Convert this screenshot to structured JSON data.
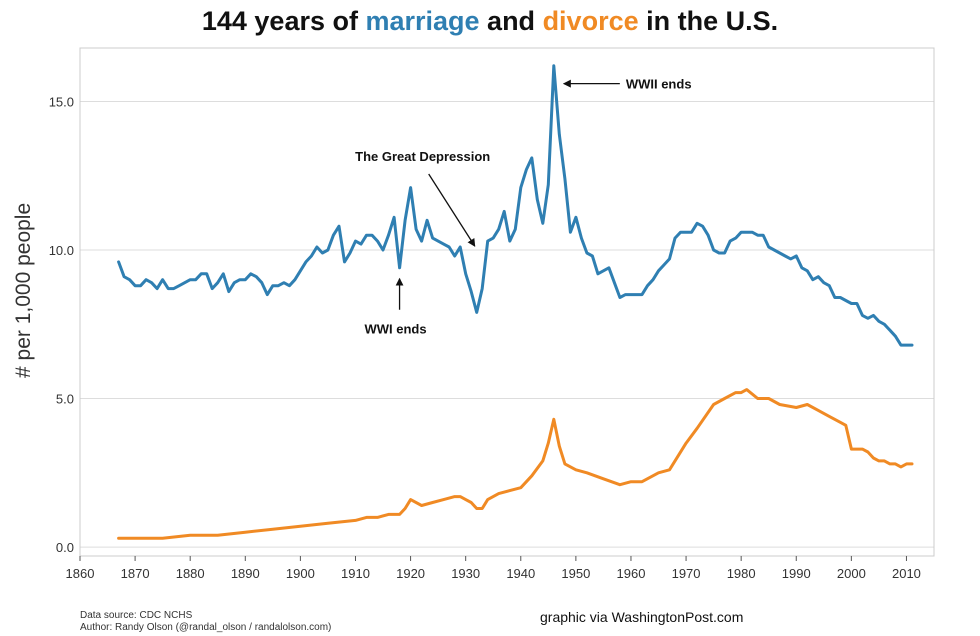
{
  "title": {
    "part1": "144 years of ",
    "marriage_word": "marriage",
    "part2": " and ",
    "divorce_word": "divorce",
    "part3": " in the U.S."
  },
  "colors": {
    "marriage": "#2f7fb2",
    "divorce": "#f08a24",
    "grid": "#dddddd"
  },
  "footer": {
    "source": "Data source: CDC NCHS",
    "author": "Author: Randy Olson (@randal_olson / randalolson.com)",
    "credit": "graphic via WashingtonPost.com"
  },
  "chart_data": {
    "type": "line",
    "xlabel": "",
    "ylabel": "# per 1,000 people",
    "xlim": [
      1860,
      2015
    ],
    "ylim": [
      -0.3,
      16.8
    ],
    "xticks": [
      "1860",
      "1870",
      "1880",
      "1890",
      "1900",
      "1910",
      "1920",
      "1930",
      "1940",
      "1950",
      "1960",
      "1970",
      "1980",
      "1990",
      "2000",
      "2010"
    ],
    "yticks": [
      "0.0",
      "5.0",
      "10.0",
      "15.0"
    ],
    "grid": true,
    "series": [
      {
        "name": "marriage",
        "x": [
          1867,
          1868,
          1869,
          1870,
          1871,
          1872,
          1873,
          1874,
          1875,
          1876,
          1877,
          1878,
          1879,
          1880,
          1881,
          1882,
          1883,
          1884,
          1885,
          1886,
          1887,
          1888,
          1889,
          1890,
          1891,
          1892,
          1893,
          1894,
          1895,
          1896,
          1897,
          1898,
          1899,
          1900,
          1901,
          1902,
          1903,
          1904,
          1905,
          1906,
          1907,
          1908,
          1909,
          1910,
          1911,
          1912,
          1913,
          1914,
          1915,
          1916,
          1917,
          1918,
          1919,
          1920,
          1921,
          1922,
          1923,
          1924,
          1925,
          1926,
          1927,
          1928,
          1929,
          1930,
          1931,
          1932,
          1933,
          1934,
          1935,
          1936,
          1937,
          1938,
          1939,
          1940,
          1941,
          1942,
          1943,
          1944,
          1945,
          1946,
          1947,
          1948,
          1949,
          1950,
          1951,
          1952,
          1953,
          1954,
          1955,
          1956,
          1957,
          1958,
          1959,
          1960,
          1961,
          1962,
          1963,
          1964,
          1965,
          1966,
          1967,
          1968,
          1969,
          1970,
          1971,
          1972,
          1973,
          1974,
          1975,
          1976,
          1977,
          1978,
          1979,
          1980,
          1981,
          1982,
          1983,
          1984,
          1985,
          1986,
          1987,
          1988,
          1989,
          1990,
          1991,
          1992,
          1993,
          1994,
          1995,
          1996,
          1997,
          1998,
          1999,
          2000,
          2001,
          2002,
          2003,
          2004,
          2005,
          2006,
          2007,
          2008,
          2009,
          2010,
          2011
        ],
        "values": [
          9.6,
          9.1,
          9.0,
          8.8,
          8.8,
          9.0,
          8.9,
          8.7,
          9.0,
          8.7,
          8.7,
          8.8,
          8.9,
          9.0,
          9.0,
          9.2,
          9.2,
          8.7,
          8.9,
          9.2,
          8.6,
          8.9,
          9.0,
          9.0,
          9.2,
          9.1,
          8.9,
          8.5,
          8.8,
          8.8,
          8.9,
          8.8,
          9.0,
          9.3,
          9.6,
          9.8,
          10.1,
          9.9,
          10.0,
          10.5,
          10.8,
          9.6,
          9.9,
          10.3,
          10.2,
          10.5,
          10.5,
          10.3,
          10.0,
          10.5,
          11.1,
          9.4,
          11.0,
          12.1,
          10.7,
          10.3,
          11.0,
          10.4,
          10.3,
          10.2,
          10.1,
          9.8,
          10.1,
          9.2,
          8.6,
          7.9,
          8.7,
          10.3,
          10.4,
          10.7,
          11.3,
          10.3,
          10.7,
          12.1,
          12.7,
          13.1,
          11.7,
          10.9,
          12.2,
          16.2,
          13.9,
          12.4,
          10.6,
          11.1,
          10.4,
          9.9,
          9.8,
          9.2,
          9.3,
          9.4,
          8.9,
          8.4,
          8.5,
          8.5,
          8.5,
          8.5,
          8.8,
          9.0,
          9.3,
          9.5,
          9.7,
          10.4,
          10.6,
          10.6,
          10.6,
          10.9,
          10.8,
          10.5,
          10.0,
          9.9,
          9.9,
          10.3,
          10.4,
          10.6,
          10.6,
          10.6,
          10.5,
          10.5,
          10.1,
          10.0,
          9.9,
          9.8,
          9.7,
          9.8,
          9.4,
          9.3,
          9.0,
          9.1,
          8.9,
          8.8,
          8.4,
          8.4,
          8.3,
          8.2,
          8.2,
          7.8,
          7.7,
          7.8,
          7.6,
          7.5,
          7.3,
          7.1,
          6.8,
          6.8,
          6.8
        ],
        "color": "#2f7fb2"
      },
      {
        "name": "divorce",
        "x": [
          1867,
          1870,
          1875,
          1880,
          1885,
          1890,
          1895,
          1900,
          1905,
          1910,
          1912,
          1914,
          1916,
          1918,
          1919,
          1920,
          1922,
          1924,
          1926,
          1928,
          1929,
          1930,
          1931,
          1932,
          1933,
          1934,
          1936,
          1938,
          1940,
          1942,
          1944,
          1945,
          1946,
          1947,
          1948,
          1950,
          1952,
          1955,
          1958,
          1960,
          1962,
          1965,
          1967,
          1970,
          1972,
          1975,
          1977,
          1979,
          1980,
          1981,
          1983,
          1985,
          1987,
          1990,
          1992,
          1994,
          1996,
          1998,
          1999,
          2000,
          2001,
          2002,
          2003,
          2004,
          2005,
          2006,
          2007,
          2008,
          2009,
          2010,
          2011
        ],
        "values": [
          0.3,
          0.3,
          0.3,
          0.4,
          0.4,
          0.5,
          0.6,
          0.7,
          0.8,
          0.9,
          1.0,
          1.0,
          1.1,
          1.1,
          1.3,
          1.6,
          1.4,
          1.5,
          1.6,
          1.7,
          1.7,
          1.6,
          1.5,
          1.3,
          1.3,
          1.6,
          1.8,
          1.9,
          2.0,
          2.4,
          2.9,
          3.5,
          4.3,
          3.4,
          2.8,
          2.6,
          2.5,
          2.3,
          2.1,
          2.2,
          2.2,
          2.5,
          2.6,
          3.5,
          4.0,
          4.8,
          5.0,
          5.2,
          5.2,
          5.3,
          5.0,
          5.0,
          4.8,
          4.7,
          4.8,
          4.6,
          4.4,
          4.2,
          4.1,
          3.3,
          3.3,
          3.3,
          3.2,
          3.0,
          2.9,
          2.9,
          2.8,
          2.8,
          2.7,
          2.8,
          2.8
        ],
        "color": "#f08a24"
      }
    ],
    "annotations": [
      {
        "text": "WWII ends",
        "x": 1946,
        "y": 15.6,
        "direction": "right"
      },
      {
        "text": "The Great Depression",
        "x": 1932,
        "y": 10.0,
        "direction": "above-left"
      },
      {
        "text": "WWI ends",
        "x": 1918,
        "y": 9.1,
        "direction": "below"
      }
    ]
  }
}
